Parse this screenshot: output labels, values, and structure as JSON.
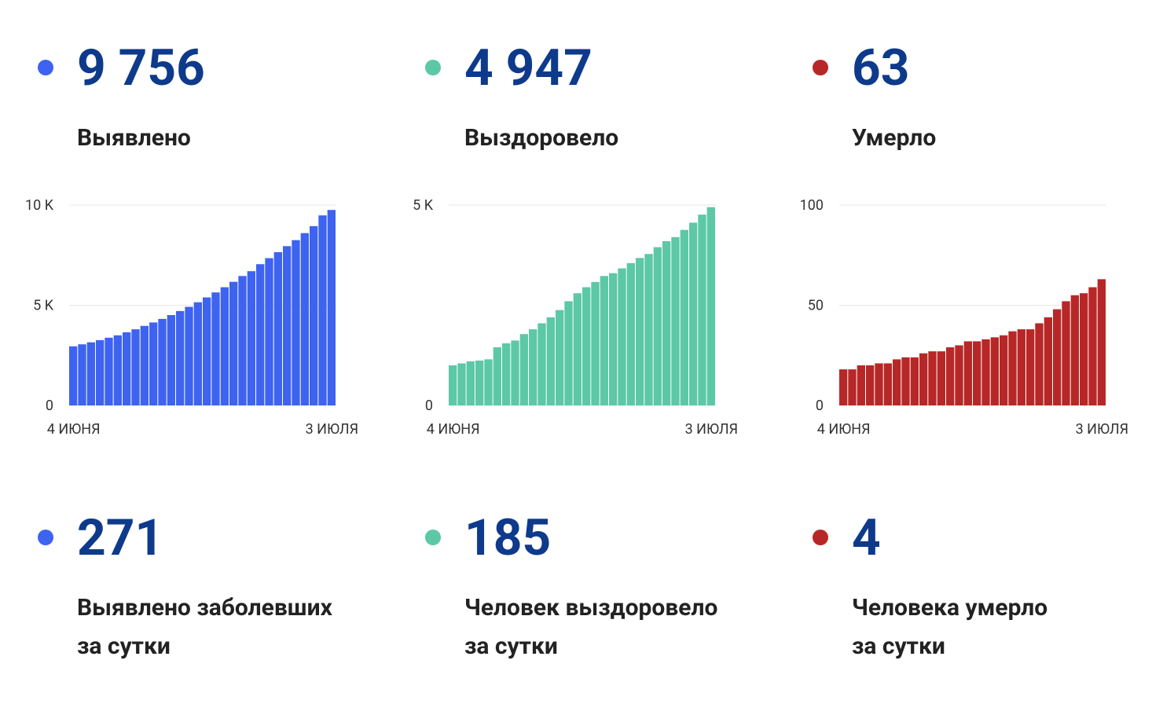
{
  "columns": [
    {
      "total": "9 756",
      "label": "Выявлено",
      "daily": "271",
      "daily_label": [
        "Выявлено заболевших",
        "за сутки"
      ]
    },
    {
      "total": "4 947",
      "label": "Выздоровело",
      "daily": "185",
      "daily_label": [
        "Человек выздоровело",
        "за сутки"
      ]
    },
    {
      "total": "63",
      "label": "Умерло",
      "daily": "4",
      "daily_label": [
        "Человека умерло",
        "за сутки"
      ]
    }
  ],
  "chart_data": [
    {
      "type": "bar",
      "color": "#3d63f0",
      "categories": [
        "4 ИЮНЯ",
        null,
        null,
        null,
        null,
        null,
        null,
        null,
        null,
        null,
        null,
        null,
        null,
        null,
        null,
        null,
        null,
        null,
        null,
        null,
        null,
        null,
        null,
        null,
        null,
        null,
        null,
        null,
        null,
        "3 ИЮЛЯ"
      ],
      "values": [
        2950,
        3050,
        3150,
        3260,
        3380,
        3500,
        3650,
        3800,
        3970,
        4140,
        4320,
        4510,
        4710,
        4920,
        5150,
        5390,
        5640,
        5900,
        6170,
        6460,
        6700,
        7050,
        7350,
        7650,
        7950,
        8250,
        8600,
        8950,
        9485,
        9756
      ],
      "ylim": [
        0,
        10000
      ],
      "yticks": [
        0,
        {
          "value": 5000,
          "label": "5 K"
        },
        {
          "value": 10000,
          "label": "10 K"
        }
      ],
      "grid": true
    },
    {
      "type": "bar",
      "color": "#5cc8a6",
      "categories": [
        "4 ИЮНЯ",
        null,
        null,
        null,
        null,
        null,
        null,
        null,
        null,
        null,
        null,
        null,
        null,
        null,
        null,
        null,
        null,
        null,
        null,
        null,
        null,
        null,
        null,
        null,
        null,
        null,
        null,
        null,
        null,
        "3 ИЮЛЯ"
      ],
      "values": [
        1000,
        1050,
        1100,
        1120,
        1150,
        1450,
        1550,
        1620,
        1780,
        1900,
        2050,
        2200,
        2380,
        2600,
        2800,
        2950,
        3080,
        3230,
        3300,
        3420,
        3550,
        3680,
        3780,
        3950,
        4100,
        4200,
        4380,
        4560,
        4762,
        4947
      ],
      "ylim": [
        0,
        5000
      ],
      "yticks": [
        0,
        {
          "value": 5000,
          "label": "5 K"
        }
      ],
      "grid": true
    },
    {
      "type": "bar",
      "color": "#b82727",
      "categories": [
        "4 ИЮНЯ",
        null,
        null,
        null,
        null,
        null,
        null,
        null,
        null,
        null,
        null,
        null,
        null,
        null,
        null,
        null,
        null,
        null,
        null,
        null,
        null,
        null,
        null,
        null,
        null,
        null,
        null,
        null,
        null,
        "3 ИЮЛЯ"
      ],
      "values": [
        18,
        18,
        20,
        20,
        21,
        21,
        23,
        24,
        24,
        26,
        27,
        27,
        29,
        30,
        32,
        32,
        33,
        34,
        35,
        37,
        38,
        38,
        41,
        44,
        48,
        52,
        55,
        56,
        59,
        63
      ],
      "ylim": [
        0,
        100
      ],
      "yticks": [
        0,
        50,
        100
      ],
      "grid": true
    }
  ]
}
